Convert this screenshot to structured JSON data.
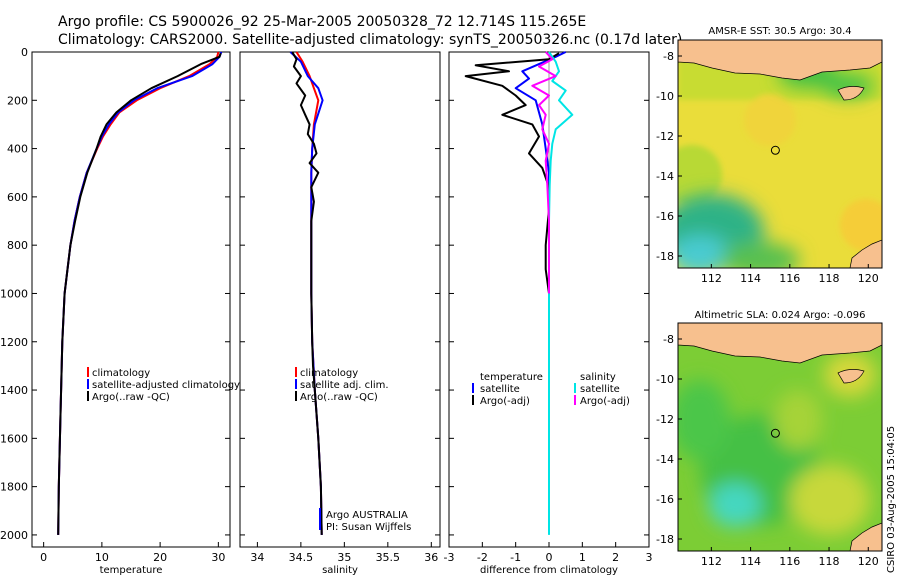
{
  "header": {
    "line1": "Argo profile: CS 5900026_92 25-Mar-2005 20050328_72 12.714S 115.265E",
    "line2": "Climatology: CARS2000. Satellite-adjusted climatology: synTS_20050326.nc (0.17d later)"
  },
  "side_stamp": "CSIRO 03-Aug-2005 15:04:05",
  "colors": {
    "climatology": "#ff0000",
    "satellite": "#0000ff",
    "argo": "#000000",
    "sal_satellite": "#00e5e5",
    "sal_argo": "#ff00ff",
    "land": "#f7c08e"
  },
  "chart_data": [
    {
      "type": "line",
      "id": "temperature",
      "xlabel": "temperature",
      "xlim": [
        -2,
        32
      ],
      "xticks": [
        0,
        10,
        20,
        30
      ],
      "ylim": [
        2050,
        0
      ],
      "yticks": [
        0,
        200,
        400,
        600,
        800,
        1000,
        1200,
        1400,
        1600,
        1800,
        2000
      ],
      "legend": [
        "climatology",
        "satellite-adjusted climatology",
        "Argo(..raw -QC)"
      ],
      "series": [
        {
          "name": "climatology",
          "color": "#ff0000",
          "x": [
            30,
            29.8,
            28.5,
            25,
            20,
            16,
            13,
            11.5,
            10.2,
            9.2,
            7.4,
            6.2,
            5.3,
            4.6,
            4.1,
            3.6,
            3.2,
            2.9,
            2.6,
            2.5
          ],
          "y": [
            0,
            20,
            50,
            100,
            150,
            200,
            250,
            300,
            350,
            400,
            500,
            600,
            700,
            800,
            900,
            1000,
            1200,
            1500,
            1800,
            2000
          ]
        },
        {
          "name": "satellite-adjusted climatology",
          "color": "#0000ff",
          "x": [
            30.5,
            30.2,
            29,
            25.5,
            19.5,
            15.5,
            12.8,
            11.2,
            10,
            9.1,
            7.4,
            6.2,
            5.3,
            4.6,
            4.1,
            3.6,
            3.2,
            2.9,
            2.6,
            2.5
          ],
          "y": [
            0,
            20,
            50,
            100,
            150,
            200,
            250,
            300,
            350,
            400,
            500,
            600,
            700,
            800,
            900,
            1000,
            1200,
            1500,
            1800,
            2000
          ]
        },
        {
          "name": "Argo(..raw -QC)",
          "color": "#000000",
          "x": [
            30.4,
            30.2,
            27,
            23,
            18.5,
            15,
            12.5,
            10.8,
            9.8,
            9.1,
            7.5,
            6.3,
            5.4,
            4.6,
            4.1,
            3.6,
            3.2,
            2.9,
            2.6,
            2.5
          ],
          "y": [
            5,
            20,
            50,
            100,
            150,
            200,
            250,
            300,
            350,
            400,
            500,
            600,
            700,
            800,
            900,
            1000,
            1200,
            1500,
            1800,
            2000
          ]
        }
      ]
    },
    {
      "type": "line",
      "id": "salinity",
      "xlabel": "salinity",
      "xlim": [
        33.8,
        36.1
      ],
      "xticks": [
        34,
        34.5,
        35,
        35.5,
        36
      ],
      "xticklabels": [
        "34",
        "34.5",
        "35",
        "35.5",
        "36"
      ],
      "ylim": [
        2050,
        0
      ],
      "legend": [
        "climatology",
        "satellite adj. clim.",
        "Argo(..raw -QC)"
      ],
      "annotation": [
        "Argo AUSTRALIA",
        "PI: Susan Wijffels"
      ],
      "series": [
        {
          "name": "climatology",
          "color": "#ff0000",
          "x": [
            34.45,
            34.52,
            34.6,
            34.65,
            34.7,
            34.65,
            34.63,
            34.62,
            34.62,
            34.62,
            34.63,
            34.66,
            34.7,
            34.73,
            34.74
          ],
          "y": [
            0,
            40,
            100,
            150,
            200,
            300,
            400,
            500,
            700,
            1000,
            1200,
            1400,
            1600,
            1800,
            2000
          ]
        },
        {
          "name": "satellite adj. clim.",
          "color": "#0000ff",
          "x": [
            34.38,
            34.5,
            34.58,
            34.7,
            34.75,
            34.66,
            34.63,
            34.62,
            34.62,
            34.62,
            34.63,
            34.66,
            34.7,
            34.73,
            34.74
          ],
          "y": [
            0,
            40,
            100,
            150,
            200,
            300,
            400,
            500,
            700,
            1000,
            1200,
            1400,
            1600,
            1800,
            2000
          ]
        },
        {
          "name": "Argo(..raw -QC)",
          "color": "#000000",
          "x": [
            34.4,
            34.45,
            34.42,
            34.5,
            34.45,
            34.55,
            34.5,
            34.55,
            34.6,
            34.58,
            34.65,
            34.68,
            34.6,
            34.7,
            34.62,
            34.65,
            34.62,
            34.62,
            34.63,
            34.64,
            34.66,
            34.7,
            34.73,
            34.74
          ],
          "y": [
            0,
            30,
            60,
            100,
            130,
            180,
            220,
            260,
            300,
            340,
            380,
            420,
            460,
            500,
            560,
            620,
            700,
            1000,
            1200,
            1300,
            1400,
            1600,
            1800,
            2000
          ]
        }
      ]
    },
    {
      "type": "line",
      "id": "difference",
      "xlabel": "difference from climatology",
      "xlim": [
        -3,
        3
      ],
      "xticks": [
        -3,
        -2,
        -1,
        0,
        1,
        2,
        3
      ],
      "ylim": [
        2050,
        0
      ],
      "legend_left": [
        "temperature",
        "satellite",
        "Argo(-adj)"
      ],
      "legend_right": [
        "salinity",
        "satellite",
        "Argo(-adj)"
      ],
      "series": [
        {
          "name": "satellite",
          "color": "#0000ff",
          "x": [
            0.5,
            0.2,
            -0.3,
            -0.8,
            -0.6,
            -1.0,
            -0.4,
            -0.3,
            -0.2,
            -0.1,
            0,
            0,
            0,
            0
          ],
          "y": [
            0,
            20,
            50,
            80,
            110,
            150,
            200,
            250,
            300,
            400,
            500,
            700,
            1000,
            1400
          ]
        },
        {
          "name": "Argo(-adj) temperature",
          "color": "#000000",
          "x": [
            0.3,
            0,
            -2.2,
            -1.2,
            -2.5,
            -1.4,
            -1.0,
            -0.7,
            -1.4,
            -0.5,
            -0.3,
            -0.6,
            -0.2,
            0,
            0,
            -0.1,
            -0.1,
            0
          ],
          "y": [
            5,
            30,
            55,
            80,
            100,
            140,
            180,
            220,
            260,
            300,
            350,
            420,
            480,
            560,
            650,
            800,
            900,
            1000
          ]
        },
        {
          "name": "satellite salinity",
          "color": "#00e5e5",
          "x": [
            0,
            0.2,
            0.3,
            0.1,
            0.5,
            0.3,
            0.7,
            0.2,
            0.1,
            0.05,
            0.02,
            0,
            0,
            0
          ],
          "y": [
            0,
            40,
            80,
            120,
            160,
            200,
            260,
            320,
            380,
            450,
            550,
            700,
            1000,
            2000
          ]
        },
        {
          "name": "Argo(-adj) salinity",
          "color": "#ff00ff",
          "x": [
            -0.1,
            0.1,
            -0.3,
            0.2,
            -0.5,
            0,
            -0.3,
            -0.1,
            -0.2,
            0,
            -0.1,
            -0.05,
            0,
            0
          ],
          "y": [
            0,
            30,
            60,
            100,
            140,
            180,
            220,
            260,
            320,
            380,
            450,
            550,
            700,
            1000
          ]
        }
      ]
    },
    {
      "type": "heatmap",
      "id": "sst-map",
      "title": "AMSR-E SST: 30.5 Argo: 30.4",
      "xlim": [
        110.3,
        120.7
      ],
      "ylim": [
        -18.6,
        -7.2
      ],
      "xticks": [
        112,
        114,
        116,
        118,
        120
      ],
      "yticks": [
        -8,
        -10,
        -12,
        -14,
        -16,
        -18
      ],
      "marker": {
        "lon": 115.265,
        "lat": -12.714
      }
    },
    {
      "type": "heatmap",
      "id": "sla-map",
      "title": "Altimetric SLA: 0.024 Argo: -0.096",
      "xlim": [
        110.3,
        120.7
      ],
      "ylim": [
        -18.6,
        -7.2
      ],
      "xticks": [
        112,
        114,
        116,
        118,
        120
      ],
      "yticks": [
        -8,
        -10,
        -12,
        -14,
        -16,
        -18
      ],
      "marker": {
        "lon": 115.265,
        "lat": -12.714
      }
    }
  ]
}
